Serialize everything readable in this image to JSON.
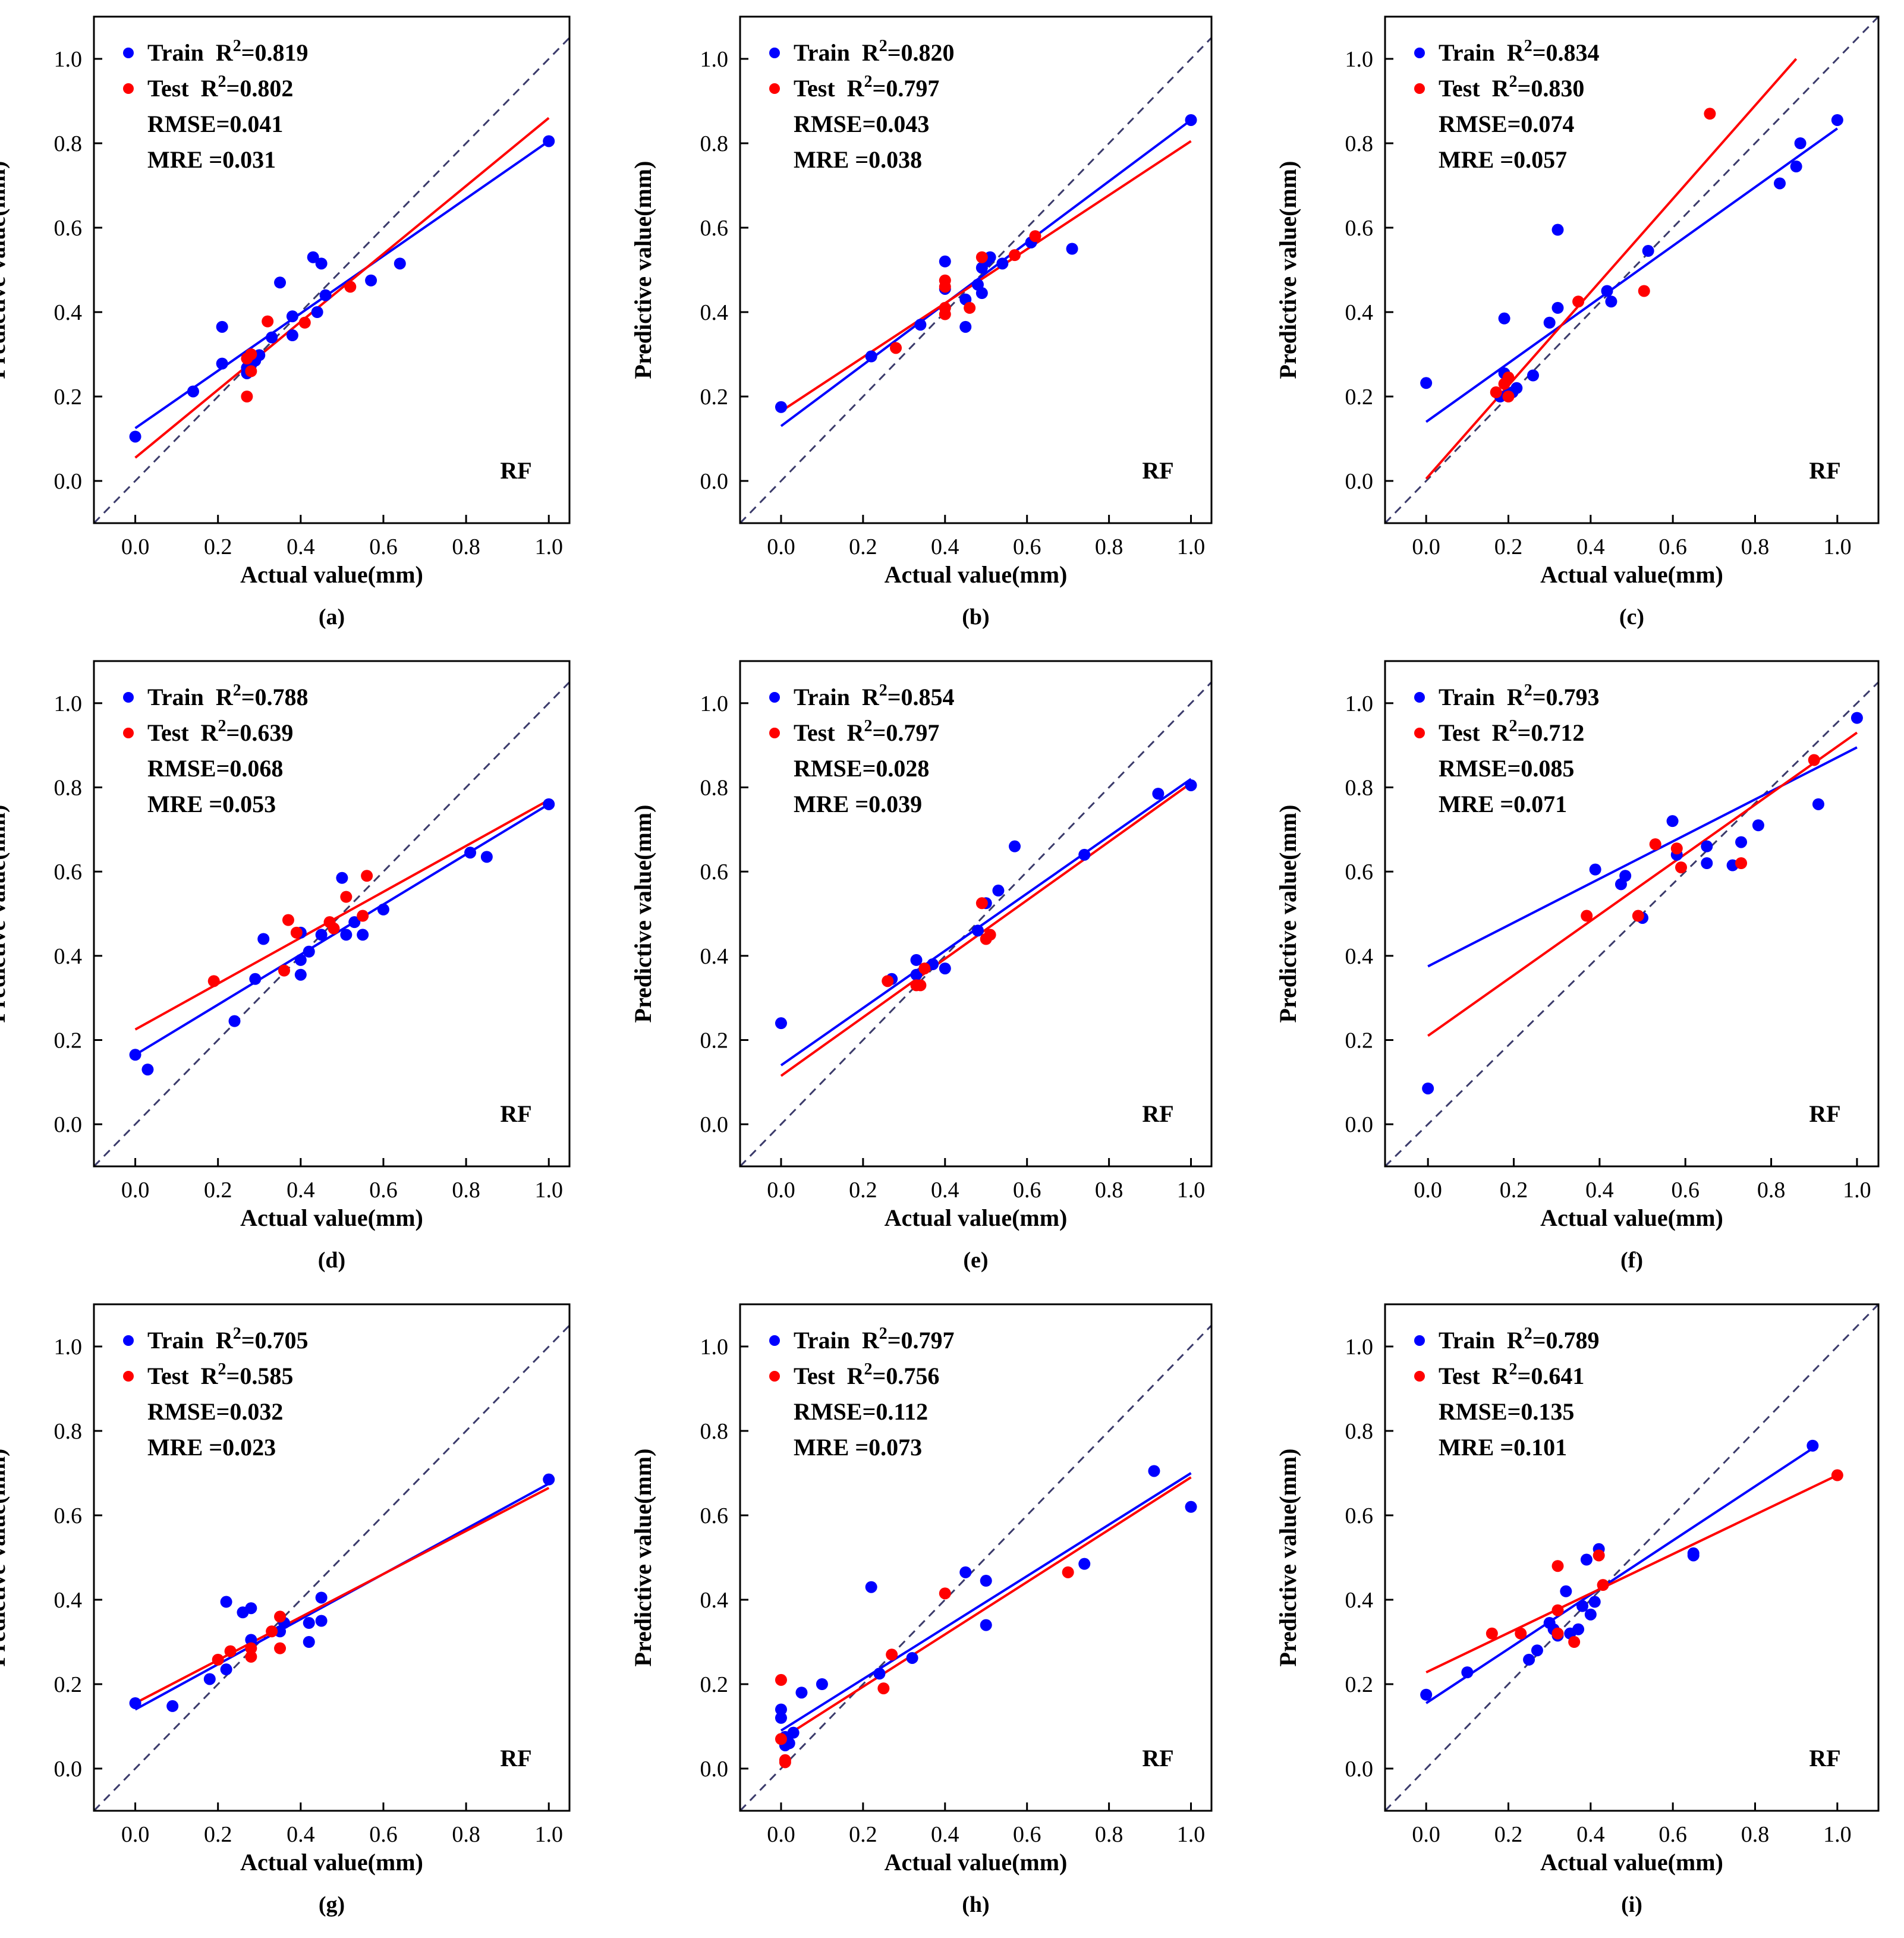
{
  "figure": {
    "xlabel": "Actual value(mm)",
    "ylabel": "Predictive value(mm)",
    "model": "RF",
    "train_label": "Train  R",
    "test_label": "Test  R",
    "sup": "2",
    "colors": {
      "train": "#0000ff",
      "test": "#ff0000",
      "diagonal": "#3b3b6b",
      "frame": "#000000"
    }
  },
  "chart_data": [
    {
      "type": "scatter",
      "caption": "(a)",
      "xlim": [
        -0.1,
        1.05
      ],
      "ylim": [
        -0.1,
        1.1
      ],
      "xticks": [
        "0.0",
        "0.2",
        "0.4",
        "0.6",
        "0.8",
        "1.0"
      ],
      "yticks": [
        "0.0",
        "0.2",
        "0.4",
        "0.6",
        "0.8",
        "1.0"
      ],
      "train_r2": "=0.819",
      "test_r2": "=0.802",
      "rmse": "RMSE=0.041",
      "mre": "MRE =0.031",
      "model": "RF",
      "train_line": [
        [
          0,
          0.125
        ],
        [
          1,
          0.805
        ]
      ],
      "test_line": [
        [
          0,
          0.055
        ],
        [
          1,
          0.86
        ]
      ],
      "train_points": [
        [
          0,
          0.105
        ],
        [
          0.14,
          0.212
        ],
        [
          0.21,
          0.365
        ],
        [
          0.21,
          0.278
        ],
        [
          0.27,
          0.255
        ],
        [
          0.27,
          0.268
        ],
        [
          0.28,
          0.275
        ],
        [
          0.29,
          0.285
        ],
        [
          0.3,
          0.298
        ],
        [
          0.33,
          0.34
        ],
        [
          0.35,
          0.47
        ],
        [
          0.38,
          0.39
        ],
        [
          0.38,
          0.345
        ],
        [
          0.43,
          0.53
        ],
        [
          0.44,
          0.4
        ],
        [
          0.45,
          0.515
        ],
        [
          0.46,
          0.44
        ],
        [
          0.57,
          0.475
        ],
        [
          0.64,
          0.515
        ],
        [
          1.0,
          0.805
        ]
      ],
      "test_points": [
        [
          0.27,
          0.2
        ],
        [
          0.27,
          0.29
        ],
        [
          0.28,
          0.3
        ],
        [
          0.28,
          0.26
        ],
        [
          0.32,
          0.378
        ],
        [
          0.41,
          0.375
        ],
        [
          0.52,
          0.46
        ]
      ]
    },
    {
      "type": "scatter",
      "caption": "(b)",
      "xlim": [
        -0.1,
        1.05
      ],
      "ylim": [
        -0.1,
        1.1
      ],
      "xticks": [
        "0.0",
        "0.2",
        "0.4",
        "0.6",
        "0.8",
        "1.0"
      ],
      "yticks": [
        "0.0",
        "0.2",
        "0.4",
        "0.6",
        "0.8",
        "1.0"
      ],
      "train_r2": "=0.820",
      "test_r2": "=0.797",
      "rmse": "RMSE=0.043",
      "mre": "MRE =0.038",
      "model": "RF",
      "train_line": [
        [
          0,
          0.13
        ],
        [
          1,
          0.855
        ]
      ],
      "test_line": [
        [
          0,
          0.165
        ],
        [
          1,
          0.805
        ]
      ],
      "train_points": [
        [
          0,
          0.175
        ],
        [
          0.22,
          0.295
        ],
        [
          0.34,
          0.37
        ],
        [
          0.4,
          0.52
        ],
        [
          0.4,
          0.455
        ],
        [
          0.45,
          0.365
        ],
        [
          0.45,
          0.43
        ],
        [
          0.48,
          0.465
        ],
        [
          0.49,
          0.505
        ],
        [
          0.49,
          0.445
        ],
        [
          0.5,
          0.52
        ],
        [
          0.51,
          0.53
        ],
        [
          0.54,
          0.515
        ],
        [
          0.61,
          0.565
        ],
        [
          0.71,
          0.55
        ],
        [
          1.0,
          0.855
        ]
      ],
      "test_points": [
        [
          0.28,
          0.315
        ],
        [
          0.4,
          0.395
        ],
        [
          0.4,
          0.41
        ],
        [
          0.4,
          0.475
        ],
        [
          0.4,
          0.46
        ],
        [
          0.46,
          0.41
        ],
        [
          0.49,
          0.53
        ],
        [
          0.57,
          0.535
        ],
        [
          0.62,
          0.58
        ]
      ]
    },
    {
      "type": "scatter",
      "caption": "(c)",
      "xlim": [
        -0.1,
        1.1
      ],
      "ylim": [
        -0.1,
        1.1
      ],
      "xticks": [
        "0.0",
        "0.2",
        "0.4",
        "0.6",
        "0.8",
        "1.0"
      ],
      "yticks": [
        "0.0",
        "0.2",
        "0.4",
        "0.6",
        "0.8",
        "1.0"
      ],
      "train_r2": "=0.834",
      "test_r2": "=0.830",
      "rmse": "RMSE=0.074",
      "mre": "MRE =0.057",
      "model": "RF",
      "train_line": [
        [
          0,
          0.14
        ],
        [
          1,
          0.835
        ]
      ],
      "test_line": [
        [
          0,
          0.005
        ],
        [
          0.9,
          1.0
        ]
      ],
      "train_points": [
        [
          0,
          0.232
        ],
        [
          0.18,
          0.2
        ],
        [
          0.19,
          0.385
        ],
        [
          0.19,
          0.255
        ],
        [
          0.2,
          0.205
        ],
        [
          0.21,
          0.21
        ],
        [
          0.22,
          0.22
        ],
        [
          0.26,
          0.25
        ],
        [
          0.3,
          0.375
        ],
        [
          0.32,
          0.41
        ],
        [
          0.32,
          0.595
        ],
        [
          0.44,
          0.45
        ],
        [
          0.45,
          0.425
        ],
        [
          0.54,
          0.545
        ],
        [
          0.86,
          0.705
        ],
        [
          0.9,
          0.745
        ],
        [
          0.91,
          0.8
        ],
        [
          1.0,
          0.855
        ]
      ],
      "test_points": [
        [
          0.17,
          0.21
        ],
        [
          0.19,
          0.23
        ],
        [
          0.2,
          0.2
        ],
        [
          0.2,
          0.245
        ],
        [
          0.37,
          0.425
        ],
        [
          0.53,
          0.45
        ],
        [
          0.69,
          0.87
        ]
      ]
    },
    {
      "type": "scatter",
      "caption": "(d)",
      "xlim": [
        -0.1,
        1.05
      ],
      "ylim": [
        -0.1,
        1.1
      ],
      "xticks": [
        "0.0",
        "0.2",
        "0.4",
        "0.6",
        "0.8",
        "1.0"
      ],
      "yticks": [
        "0.0",
        "0.2",
        "0.4",
        "0.6",
        "0.8",
        "1.0"
      ],
      "train_r2": "=0.788",
      "test_r2": "=0.639",
      "rmse": "RMSE=0.068",
      "mre": "MRE =0.053",
      "model": "RF",
      "train_line": [
        [
          0,
          0.165
        ],
        [
          1,
          0.76
        ]
      ],
      "test_line": [
        [
          0,
          0.225
        ],
        [
          1,
          0.77
        ]
      ],
      "train_points": [
        [
          0,
          0.165
        ],
        [
          0.03,
          0.13
        ],
        [
          0.24,
          0.245
        ],
        [
          0.29,
          0.345
        ],
        [
          0.31,
          0.44
        ],
        [
          0.4,
          0.355
        ],
        [
          0.4,
          0.39
        ],
        [
          0.4,
          0.455
        ],
        [
          0.42,
          0.41
        ],
        [
          0.45,
          0.45
        ],
        [
          0.5,
          0.585
        ],
        [
          0.51,
          0.45
        ],
        [
          0.53,
          0.48
        ],
        [
          0.55,
          0.45
        ],
        [
          0.6,
          0.51
        ],
        [
          0.81,
          0.645
        ],
        [
          0.85,
          0.635
        ],
        [
          1.0,
          0.76
        ]
      ],
      "test_points": [
        [
          0.19,
          0.34
        ],
        [
          0.36,
          0.365
        ],
        [
          0.37,
          0.485
        ],
        [
          0.39,
          0.455
        ],
        [
          0.47,
          0.48
        ],
        [
          0.48,
          0.465
        ],
        [
          0.51,
          0.54
        ],
        [
          0.55,
          0.495
        ],
        [
          0.56,
          0.59
        ]
      ]
    },
    {
      "type": "scatter",
      "caption": "(e)",
      "xlim": [
        -0.1,
        1.05
      ],
      "ylim": [
        -0.1,
        1.1
      ],
      "xticks": [
        "0.0",
        "0.2",
        "0.4",
        "0.6",
        "0.8",
        "1.0"
      ],
      "yticks": [
        "0.0",
        "0.2",
        "0.4",
        "0.6",
        "0.8",
        "1.0"
      ],
      "train_r2": "=0.854",
      "test_r2": "=0.797",
      "rmse": "RMSE=0.028",
      "mre": "MRE =0.039",
      "model": "RF",
      "train_line": [
        [
          0,
          0.14
        ],
        [
          1,
          0.82
        ]
      ],
      "test_line": [
        [
          0,
          0.115
        ],
        [
          1,
          0.81
        ]
      ],
      "train_points": [
        [
          0,
          0.24
        ],
        [
          0.27,
          0.345
        ],
        [
          0.33,
          0.39
        ],
        [
          0.33,
          0.355
        ],
        [
          0.37,
          0.38
        ],
        [
          0.4,
          0.37
        ],
        [
          0.48,
          0.46
        ],
        [
          0.5,
          0.525
        ],
        [
          0.53,
          0.555
        ],
        [
          0.57,
          0.66
        ],
        [
          0.74,
          0.64
        ],
        [
          0.92,
          0.785
        ],
        [
          1.0,
          0.805
        ]
      ],
      "test_points": [
        [
          0.26,
          0.34
        ],
        [
          0.33,
          0.33
        ],
        [
          0.34,
          0.33
        ],
        [
          0.35,
          0.37
        ],
        [
          0.49,
          0.525
        ],
        [
          0.5,
          0.44
        ],
        [
          0.51,
          0.45
        ]
      ]
    },
    {
      "type": "scatter",
      "caption": "(f)",
      "xlim": [
        -0.1,
        1.05
      ],
      "ylim": [
        -0.1,
        1.1
      ],
      "xticks": [
        "0.0",
        "0.2",
        "0.4",
        "0.6",
        "0.8",
        "1.0"
      ],
      "yticks": [
        "0.0",
        "0.2",
        "0.4",
        "0.6",
        "0.8",
        "1.0"
      ],
      "train_r2": "=0.793",
      "test_r2": "=0.712",
      "rmse": "RMSE=0.085",
      "mre": "MRE =0.071",
      "model": "RF",
      "train_line": [
        [
          0,
          0.375
        ],
        [
          1,
          0.895
        ]
      ],
      "test_line": [
        [
          0,
          0.21
        ],
        [
          1,
          0.93
        ]
      ],
      "train_points": [
        [
          0,
          0.085
        ],
        [
          0.39,
          0.605
        ],
        [
          0.45,
          0.57
        ],
        [
          0.46,
          0.59
        ],
        [
          0.5,
          0.49
        ],
        [
          0.57,
          0.72
        ],
        [
          0.58,
          0.64
        ],
        [
          0.65,
          0.62
        ],
        [
          0.65,
          0.66
        ],
        [
          0.71,
          0.615
        ],
        [
          0.73,
          0.67
        ],
        [
          0.77,
          0.71
        ],
        [
          0.91,
          0.76
        ],
        [
          1.0,
          0.965
        ]
      ],
      "test_points": [
        [
          0.37,
          0.495
        ],
        [
          0.49,
          0.495
        ],
        [
          0.53,
          0.665
        ],
        [
          0.58,
          0.655
        ],
        [
          0.59,
          0.61
        ],
        [
          0.73,
          0.62
        ],
        [
          0.9,
          0.865
        ]
      ]
    },
    {
      "type": "scatter",
      "caption": "(g)",
      "xlim": [
        -0.1,
        1.05
      ],
      "ylim": [
        -0.1,
        1.1
      ],
      "xticks": [
        "0.0",
        "0.2",
        "0.4",
        "0.6",
        "0.8",
        "1.0"
      ],
      "yticks": [
        "0.0",
        "0.2",
        "0.4",
        "0.6",
        "0.8",
        "1.0"
      ],
      "train_r2": "=0.705",
      "test_r2": "=0.585",
      "rmse": "RMSE=0.032",
      "mre": "MRE =0.023",
      "model": "RF",
      "train_line": [
        [
          0,
          0.14
        ],
        [
          1,
          0.675
        ]
      ],
      "test_line": [
        [
          0,
          0.155
        ],
        [
          1,
          0.665
        ]
      ],
      "train_points": [
        [
          0,
          0.155
        ],
        [
          0.09,
          0.148
        ],
        [
          0.18,
          0.212
        ],
        [
          0.22,
          0.235
        ],
        [
          0.22,
          0.395
        ],
        [
          0.26,
          0.37
        ],
        [
          0.28,
          0.38
        ],
        [
          0.28,
          0.305
        ],
        [
          0.35,
          0.325
        ],
        [
          0.36,
          0.345
        ],
        [
          0.42,
          0.3
        ],
        [
          0.42,
          0.345
        ],
        [
          0.45,
          0.405
        ],
        [
          0.45,
          0.35
        ],
        [
          1.0,
          0.685
        ]
      ],
      "test_points": [
        [
          0.2,
          0.258
        ],
        [
          0.23,
          0.278
        ],
        [
          0.28,
          0.265
        ],
        [
          0.28,
          0.285
        ],
        [
          0.33,
          0.325
        ],
        [
          0.35,
          0.36
        ],
        [
          0.35,
          0.285
        ]
      ]
    },
    {
      "type": "scatter",
      "caption": "(h)",
      "xlim": [
        -0.1,
        1.05
      ],
      "ylim": [
        -0.1,
        1.1
      ],
      "xticks": [
        "0.0",
        "0.2",
        "0.4",
        "0.6",
        "0.8",
        "1.0"
      ],
      "yticks": [
        "0.0",
        "0.2",
        "0.4",
        "0.6",
        "0.8",
        "1.0"
      ],
      "train_r2": "=0.797",
      "test_r2": "=0.756",
      "rmse": "RMSE=0.112",
      "mre": "MRE =0.073",
      "model": "RF",
      "train_line": [
        [
          0,
          0.09
        ],
        [
          1,
          0.7
        ]
      ],
      "test_line": [
        [
          0,
          0.07
        ],
        [
          1,
          0.69
        ]
      ],
      "train_points": [
        [
          0,
          0.14
        ],
        [
          0,
          0.12
        ],
        [
          0.01,
          0.075
        ],
        [
          0.01,
          0.055
        ],
        [
          0.02,
          0.06
        ],
        [
          0.03,
          0.085
        ],
        [
          0.05,
          0.18
        ],
        [
          0.1,
          0.2
        ],
        [
          0.22,
          0.43
        ],
        [
          0.24,
          0.225
        ],
        [
          0.32,
          0.262
        ],
        [
          0.45,
          0.465
        ],
        [
          0.5,
          0.34
        ],
        [
          0.5,
          0.445
        ],
        [
          0.74,
          0.485
        ],
        [
          0.91,
          0.705
        ],
        [
          1.0,
          0.62
        ]
      ],
      "test_points": [
        [
          0,
          0.21
        ],
        [
          0,
          0.07
        ],
        [
          0.01,
          0.02
        ],
        [
          0.01,
          0.015
        ],
        [
          0.25,
          0.19
        ],
        [
          0.27,
          0.27
        ],
        [
          0.4,
          0.415
        ],
        [
          0.7,
          0.465
        ]
      ]
    },
    {
      "type": "scatter",
      "caption": "(i)",
      "xlim": [
        -0.1,
        1.1
      ],
      "ylim": [
        -0.1,
        1.1
      ],
      "xticks": [
        "0.0",
        "0.2",
        "0.4",
        "0.6",
        "0.8",
        "1.0"
      ],
      "yticks": [
        "0.0",
        "0.2",
        "0.4",
        "0.6",
        "0.8",
        "1.0"
      ],
      "train_r2": "=0.789",
      "test_r2": "=0.641",
      "rmse": "RMSE=0.135",
      "mre": "MRE =0.101",
      "model": "RF",
      "train_line": [
        [
          0,
          0.155
        ],
        [
          0.95,
          0.765
        ]
      ],
      "test_line": [
        [
          0,
          0.228
        ],
        [
          1,
          0.695
        ]
      ],
      "train_points": [
        [
          0,
          0.175
        ],
        [
          0.1,
          0.228
        ],
        [
          0.25,
          0.258
        ],
        [
          0.27,
          0.28
        ],
        [
          0.3,
          0.345
        ],
        [
          0.31,
          0.33
        ],
        [
          0.32,
          0.315
        ],
        [
          0.34,
          0.42
        ],
        [
          0.35,
          0.32
        ],
        [
          0.37,
          0.33
        ],
        [
          0.38,
          0.385
        ],
        [
          0.39,
          0.495
        ],
        [
          0.4,
          0.365
        ],
        [
          0.41,
          0.395
        ],
        [
          0.42,
          0.52
        ],
        [
          0.65,
          0.51
        ],
        [
          0.65,
          0.505
        ],
        [
          0.94,
          0.765
        ]
      ],
      "test_points": [
        [
          0.16,
          0.32
        ],
        [
          0.23,
          0.32
        ],
        [
          0.32,
          0.48
        ],
        [
          0.32,
          0.375
        ],
        [
          0.32,
          0.32
        ],
        [
          0.36,
          0.3
        ],
        [
          0.42,
          0.505
        ],
        [
          0.43,
          0.435
        ],
        [
          1.0,
          0.695
        ]
      ]
    }
  ]
}
